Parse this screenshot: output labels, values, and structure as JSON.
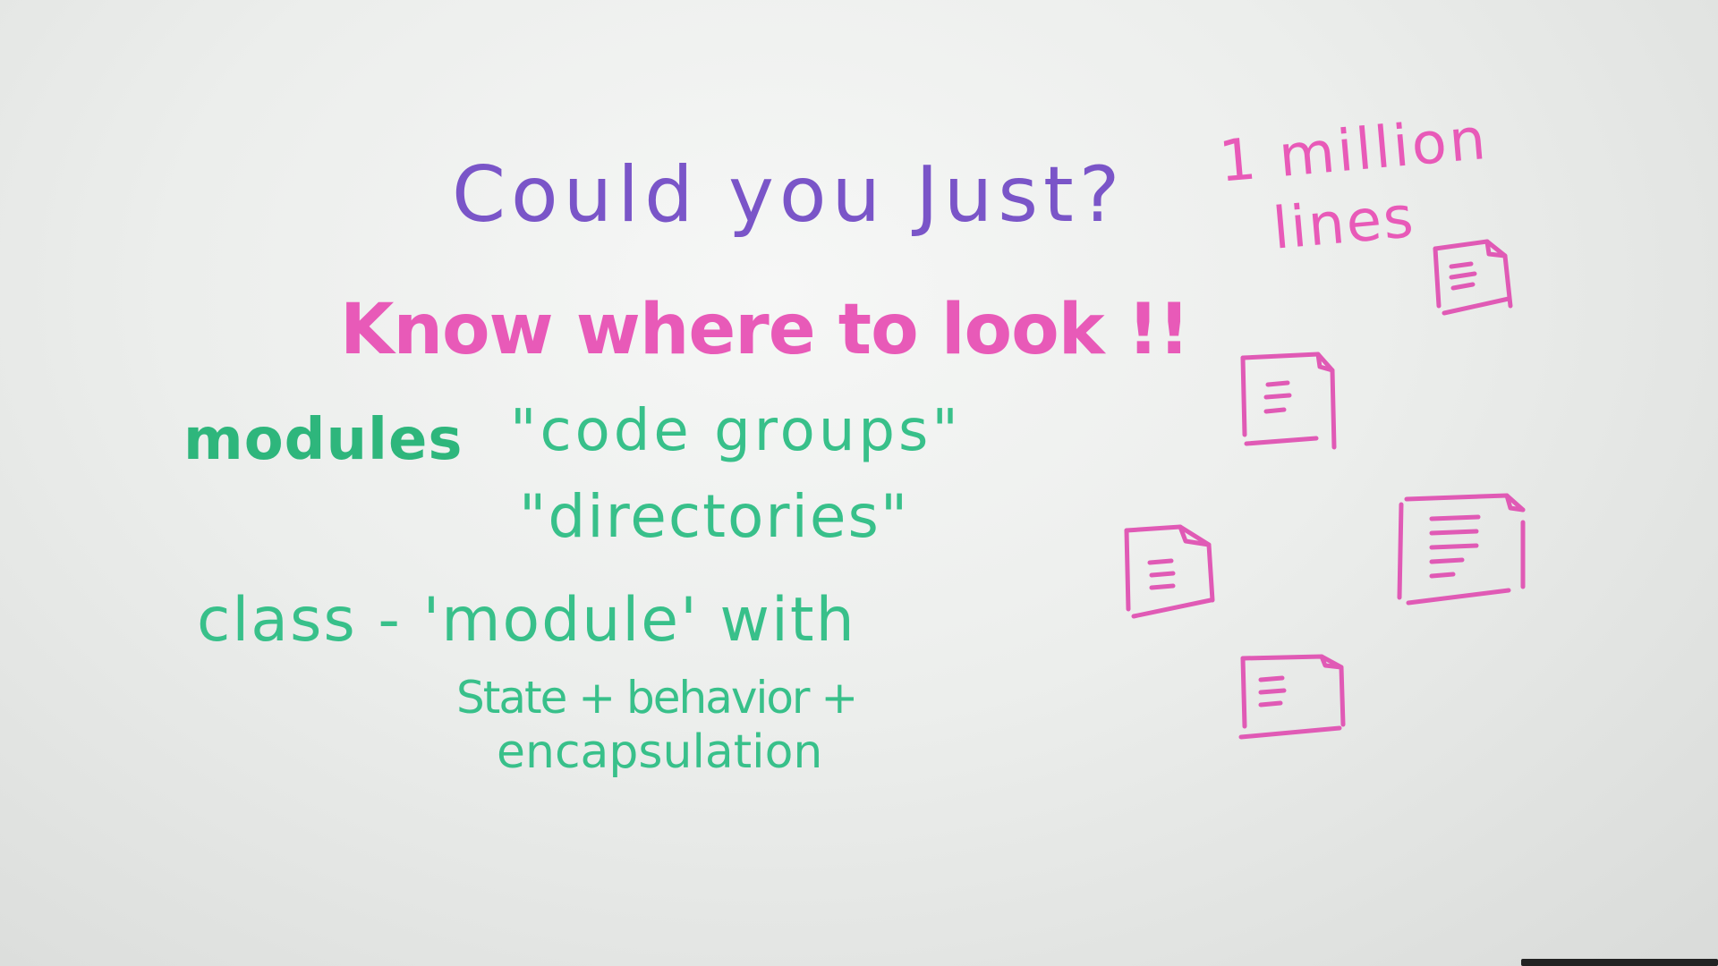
{
  "board": {
    "title_line": "Could you Just?",
    "emphasis_line": "Know where to look !!",
    "modules_label": "modules",
    "code_groups": "\"code groups\"",
    "directories": "\"directories\"",
    "class_line": "class - 'module' with",
    "state_line": "State + behavior +",
    "encapsulation_line": "encapsulation",
    "million_label": "1 million",
    "lines_label": "lines"
  },
  "colors": {
    "purple_marker": "#7a55c8",
    "magenta_marker": "#e85ab8",
    "green_marker": "#38c08a"
  },
  "icons": [
    "document-icon",
    "document-icon",
    "document-icon",
    "document-icon",
    "document-icon"
  ]
}
